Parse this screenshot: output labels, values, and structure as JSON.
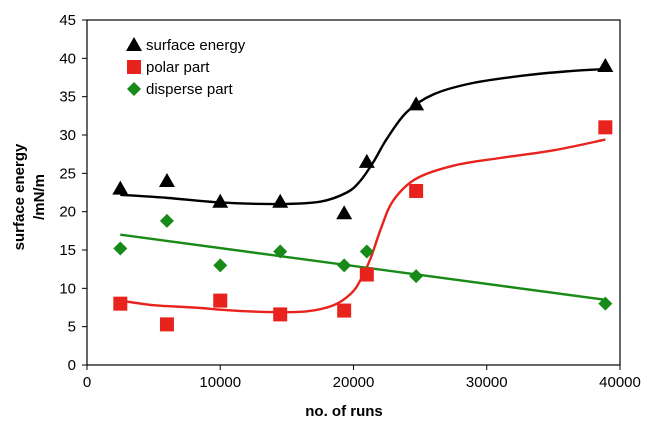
{
  "chart_data": {
    "type": "scatter",
    "xlabel": "no. of  runs",
    "ylabel_lines": [
      "surface energy",
      "/mN/m"
    ],
    "xlim": [
      0,
      40000
    ],
    "ylim": [
      0,
      45
    ],
    "xticks": [
      0,
      10000,
      20000,
      30000,
      40000
    ],
    "yticks": [
      0,
      5,
      10,
      15,
      20,
      25,
      30,
      35,
      40,
      45
    ],
    "grid": false,
    "legend_position": "top-left",
    "series": [
      {
        "name": "surface energy",
        "marker": "triangle",
        "color": "#000000",
        "x": [
          2500,
          6000,
          10000,
          14500,
          19300,
          21000,
          24700,
          38900
        ],
        "y": [
          23.0,
          24.0,
          21.3,
          21.3,
          19.8,
          26.5,
          34.0,
          39.0
        ],
        "fit_x": [
          2500,
          6000,
          10000,
          14500,
          17500,
          19500,
          20500,
          21500,
          22500,
          24000,
          26000,
          29000,
          33000,
          36000,
          38900
        ],
        "fit_y": [
          22.2,
          21.8,
          21.2,
          21.0,
          21.3,
          22.5,
          24.0,
          26.5,
          29.5,
          33.0,
          35.3,
          36.8,
          37.8,
          38.3,
          38.6
        ]
      },
      {
        "name": "polar part",
        "marker": "square",
        "color": "#e8221c",
        "x": [
          2500,
          6000,
          10000,
          14500,
          19300,
          21000,
          24700,
          38900
        ],
        "y": [
          8.0,
          5.3,
          8.4,
          6.6,
          7.1,
          11.8,
          22.7,
          31.0
        ],
        "fit_x": [
          2500,
          5000,
          8000,
          11000,
          14000,
          16500,
          18500,
          19800,
          20500,
          21300,
          22100,
          23000,
          24700,
          27500,
          31000,
          35000,
          38900
        ],
        "fit_y": [
          8.4,
          7.8,
          7.5,
          7.1,
          6.9,
          7.0,
          7.8,
          9.3,
          11.0,
          14.0,
          18.0,
          21.5,
          24.3,
          26.0,
          27.0,
          28.0,
          29.4
        ]
      },
      {
        "name": "disperse part",
        "marker": "diamond",
        "color": "#178a17",
        "x": [
          2500,
          6000,
          10000,
          14500,
          19300,
          21000,
          24700,
          38900
        ],
        "y": [
          15.2,
          18.8,
          13.0,
          14.8,
          13.0,
          14.8,
          11.6,
          8.0
        ],
        "fit_x": [
          2500,
          38900
        ],
        "fit_y": [
          17.0,
          8.5
        ]
      }
    ]
  }
}
